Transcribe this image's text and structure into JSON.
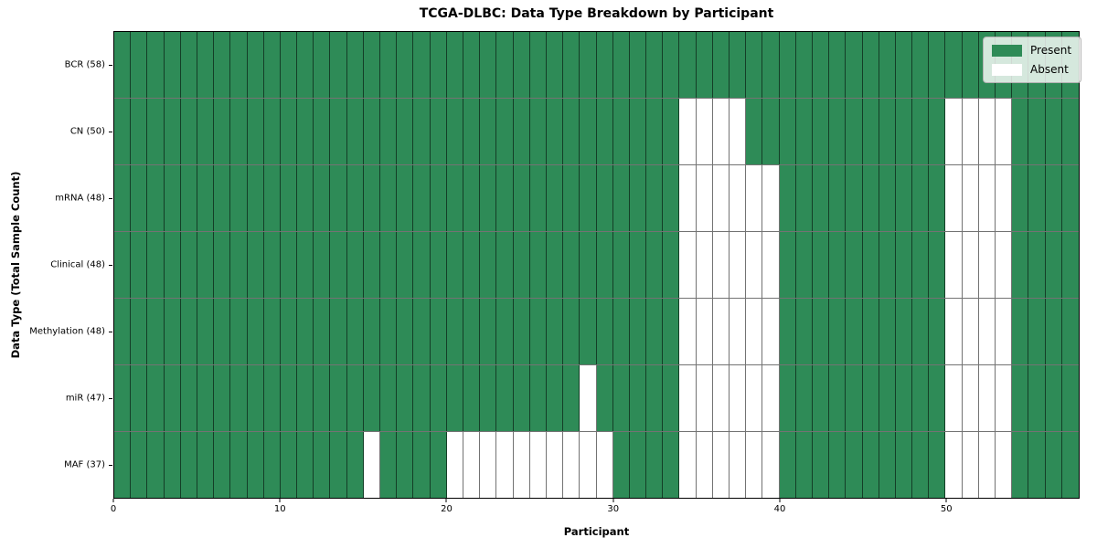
{
  "chart_data": {
    "type": "heatmap",
    "title": "TCGA-DLBC: Data Type Breakdown by Participant",
    "xlabel": "Participant",
    "ylabel": "Data Type (Total Sample Count)",
    "n_participants": 58,
    "x_ticks": [
      0,
      10,
      20,
      30,
      40,
      50
    ],
    "grid": true,
    "legend_position": "upper right",
    "colors": {
      "present": "#2e8b57",
      "absent": "#ffffff",
      "cell_edge": "rgba(0,0,0,0.55)",
      "axis": "#000000"
    },
    "legend": [
      {
        "label": "Present",
        "color": "#2e8b57"
      },
      {
        "label": "Absent",
        "color": "#ffffff"
      }
    ],
    "rows": [
      {
        "data_type": "BCR",
        "label": "BCR (58)",
        "total": 58,
        "absent_participants": []
      },
      {
        "data_type": "CN",
        "label": "CN (50)",
        "total": 50,
        "absent_participants": [
          34,
          35,
          36,
          37,
          50,
          51,
          52,
          53
        ]
      },
      {
        "data_type": "mRNA",
        "label": "mRNA (48)",
        "total": 48,
        "absent_participants": [
          34,
          35,
          36,
          37,
          38,
          39,
          50,
          51,
          52,
          53
        ]
      },
      {
        "data_type": "Clinical",
        "label": "Clinical (48)",
        "total": 48,
        "absent_participants": [
          34,
          35,
          36,
          37,
          38,
          39,
          50,
          51,
          52,
          53
        ]
      },
      {
        "data_type": "Methylation",
        "label": "Methylation (48)",
        "total": 48,
        "absent_participants": [
          34,
          35,
          36,
          37,
          38,
          39,
          50,
          51,
          52,
          53
        ]
      },
      {
        "data_type": "miR",
        "label": "miR (47)",
        "total": 47,
        "absent_participants": [
          28,
          34,
          35,
          36,
          37,
          38,
          39,
          50,
          51,
          52,
          53
        ]
      },
      {
        "data_type": "MAF",
        "label": "MAF (37)",
        "total": 37,
        "absent_participants": [
          15,
          20,
          21,
          22,
          23,
          24,
          25,
          26,
          27,
          28,
          29,
          34,
          35,
          36,
          37,
          38,
          39,
          50,
          51,
          52,
          53
        ]
      }
    ]
  }
}
